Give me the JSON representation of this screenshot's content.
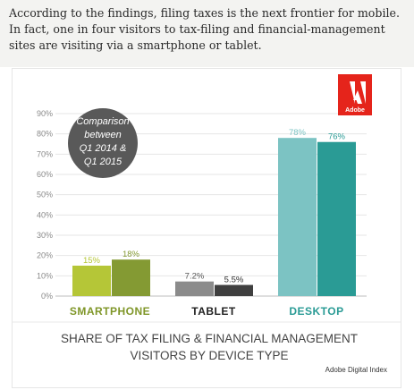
{
  "intro": {
    "text": "According to the findings, filing taxes is the next frontier for mobile. In fact, one in four visitors to tax-filing and financial-management sites are visiting via a smartphone or tablet."
  },
  "logo": {
    "text": "Adobe"
  },
  "bubble": {
    "lines": [
      "Comparison",
      "between",
      "Q1 2014 &",
      "Q1 2015"
    ]
  },
  "caption": {
    "line1": "SHARE OF TAX FILING & FINANCIAL MANAGEMENT",
    "line2": "VISITORS BY DEVICE TYPE"
  },
  "source": "Adobe Digital Index",
  "chart_data": {
    "type": "bar",
    "title": "SHARE OF TAX FILING & FINANCIAL MANAGEMENT VISITORS BY DEVICE TYPE",
    "categories": [
      "SMARTPHONE",
      "TABLET",
      "DESKTOP"
    ],
    "series": [
      {
        "values": [
          15,
          7.2,
          78
        ]
      },
      {
        "values": [
          18,
          5.5,
          76
        ]
      }
    ],
    "value_labels": [
      [
        "15%",
        "7.2%",
        "78%"
      ],
      [
        "18%",
        "5.5%",
        "76%"
      ]
    ],
    "ylim": [
      0,
      90
    ],
    "yticks": [
      "0%",
      "10%",
      "20%",
      "30%",
      "40%",
      "50%",
      "60%",
      "70%",
      "80%",
      "90%"
    ],
    "grid": true,
    "colors": {
      "SMARTPHONE": [
        "#b5c637",
        "#849a33"
      ],
      "TABLET": [
        "#8b8b8b",
        "#3f3f3f"
      ],
      "DESKTOP": [
        "#7cc3c3",
        "#2a9b95"
      ]
    },
    "category_label_colors": [
      "#7f9628",
      "#222222",
      "#2a9b95"
    ]
  }
}
